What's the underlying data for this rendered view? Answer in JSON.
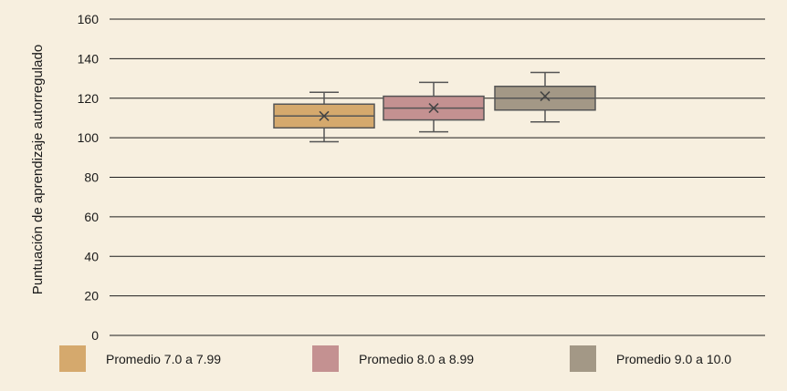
{
  "chart_data": {
    "type": "box",
    "ylabel": "Puntuación de aprendizaje autorregulado",
    "ylim": [
      0,
      160
    ],
    "yticks": [
      0,
      20,
      40,
      60,
      80,
      100,
      120,
      140,
      160
    ],
    "grid": true,
    "legend_position": "bottom",
    "series": [
      {
        "name": "Promedio 7.0 a 7.99",
        "min": 98,
        "q1": 105,
        "median": 111,
        "q3": 117,
        "max": 123,
        "mean": 111,
        "color": "#d5a96d"
      },
      {
        "name": "Promedio 8.0 a 8.99",
        "min": 103,
        "q1": 109,
        "median": 115,
        "q3": 121,
        "max": 128,
        "mean": 115,
        "color": "#c49191"
      },
      {
        "name": "Promedio 9.0 a 10.0",
        "min": 108,
        "q1": 114,
        "median": 120,
        "q3": 126,
        "max": 133,
        "mean": 121,
        "color": "#a39886"
      }
    ]
  }
}
